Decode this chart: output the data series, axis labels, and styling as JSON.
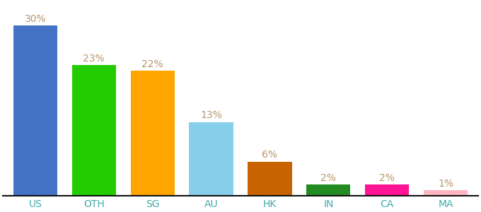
{
  "categories": [
    "US",
    "OTH",
    "SG",
    "AU",
    "HK",
    "IN",
    "CA",
    "MA"
  ],
  "values": [
    30,
    23,
    22,
    13,
    6,
    2,
    2,
    1
  ],
  "bar_colors": [
    "#4472C4",
    "#22CC00",
    "#FFA500",
    "#87CEEB",
    "#C86400",
    "#228B22",
    "#FF1493",
    "#FFB6C1"
  ],
  "label_color": "#B8956A",
  "tick_label_color": "#44AAAA",
  "ylim": [
    0,
    34
  ],
  "background_color": "#ffffff",
  "label_fontsize": 10,
  "tick_fontsize": 10,
  "bar_width": 0.75
}
